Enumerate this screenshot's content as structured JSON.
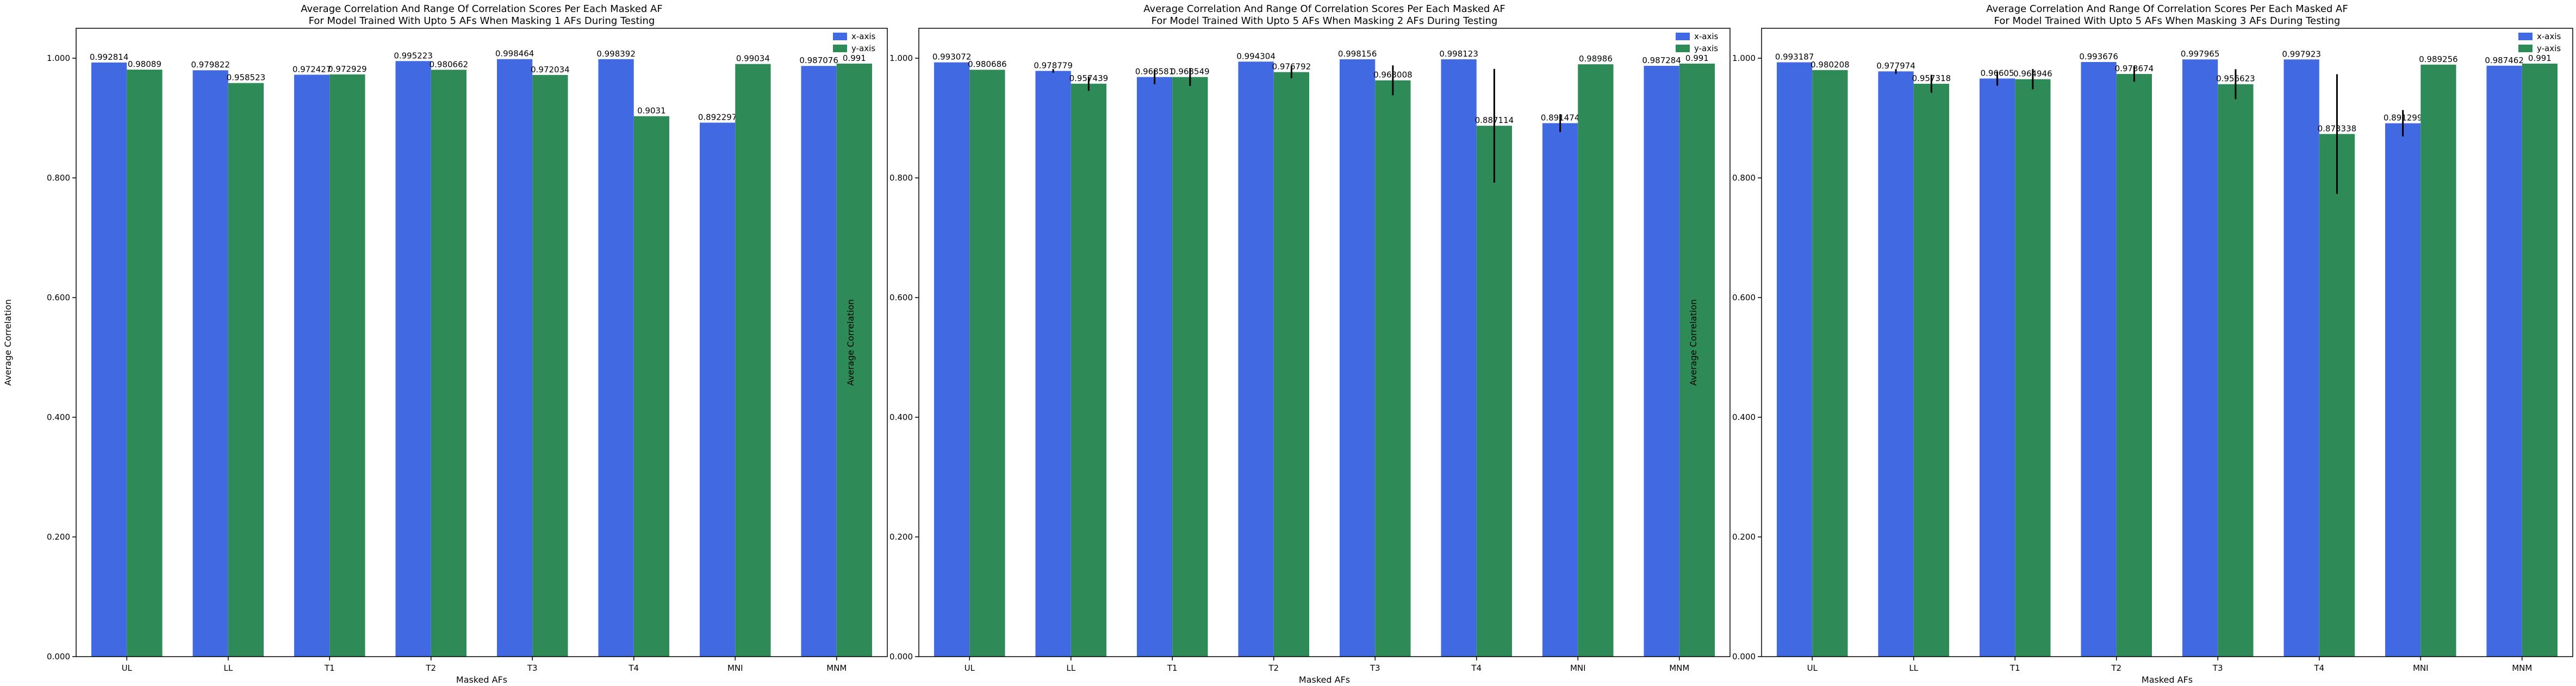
{
  "colors": {
    "x_axis": "#4169e1",
    "y_axis": "#2e8b57",
    "error": "#000000"
  },
  "chart_data": [
    {
      "type": "bar",
      "title": "Average Correlation And Range Of Correlation Scores Per Each Masked AF",
      "subtitle": "For Model Trained With Upto 5 AFs When Masking 1 AFs During Testing",
      "xlabel": "Masked AFs",
      "ylabel": "Average Correlation",
      "ylim": [
        0,
        1.05
      ],
      "yticks": [
        "0.000",
        "0.200",
        "0.400",
        "0.600",
        "0.800",
        "1.000"
      ],
      "legend_position": "top-right",
      "categories": [
        "UL",
        "LL",
        "T1",
        "T2",
        "T3",
        "T4",
        "MNI",
        "MNM"
      ],
      "series": [
        {
          "name": "x-axis",
          "values": [
            0.992814,
            0.979822,
            0.972427,
            0.995223,
            0.998464,
            0.998392,
            0.892297,
            0.987076
          ],
          "labels": [
            "0.992814",
            "0.979822",
            "0.972427",
            "0.995223",
            "0.998464",
            "0.998392",
            "0.892297",
            "0.987076"
          ],
          "err": [
            0,
            0,
            0,
            0,
            0,
            0,
            0,
            0
          ]
        },
        {
          "name": "y-axis",
          "values": [
            0.98089,
            0.958523,
            0.972929,
            0.980662,
            0.972034,
            0.9031,
            0.99034,
            0.991
          ],
          "labels": [
            "0.98089",
            "0.958523",
            "0.972929",
            "0.980662",
            "0.972034",
            "0.9031",
            "0.99034",
            "0.991"
          ],
          "err": [
            0,
            0,
            0,
            0,
            0,
            0,
            0,
            0
          ]
        }
      ]
    },
    {
      "type": "bar",
      "title": "Average Correlation And Range Of Correlation Scores Per Each Masked AF",
      "subtitle": "For Model Trained With Upto 5 AFs When Masking 2 AFs During Testing",
      "xlabel": "Masked AFs",
      "ylabel": "Average Correlation",
      "ylim": [
        0,
        1.05
      ],
      "yticks": [
        "0.000",
        "0.200",
        "0.400",
        "0.600",
        "0.800",
        "1.000"
      ],
      "legend_position": "top-right",
      "categories": [
        "UL",
        "LL",
        "T1",
        "T2",
        "T3",
        "T4",
        "MNI",
        "MNM"
      ],
      "series": [
        {
          "name": "x-axis",
          "values": [
            0.993072,
            0.978779,
            0.968581,
            0.994304,
            0.998156,
            0.998123,
            0.891474,
            0.987284
          ],
          "labels": [
            "0.993072",
            "0.978779",
            "0.968581",
            "0.994304",
            "0.998156",
            "0.998123",
            "0.891474",
            "0.987284"
          ],
          "err": [
            0,
            0.003,
            0.012,
            0,
            0,
            0,
            0.015,
            0
          ]
        },
        {
          "name": "y-axis",
          "values": [
            0.980686,
            0.957439,
            0.968549,
            0.976792,
            0.963008,
            0.887114,
            0.98986,
            0.991
          ],
          "labels": [
            "0.980686",
            "0.957439",
            "0.968549",
            "0.976792",
            "0.963008",
            "0.887114",
            "0.98986",
            "0.991"
          ],
          "err": [
            0,
            0.012,
            0.015,
            0.01,
            0.025,
            0.095,
            0,
            0
          ]
        }
      ]
    },
    {
      "type": "bar",
      "title": "Average Correlation And Range Of Correlation Scores Per Each Masked AF",
      "subtitle": "For Model Trained With Upto 5 AFs When Masking 3 AFs During Testing",
      "xlabel": "Masked AFs",
      "ylabel": "Average Correlation",
      "ylim": [
        0,
        1.05
      ],
      "yticks": [
        "0.000",
        "0.200",
        "0.400",
        "0.600",
        "0.800",
        "1.000"
      ],
      "legend_position": "top-right",
      "categories": [
        "UL",
        "LL",
        "T1",
        "T2",
        "T3",
        "T4",
        "MNI",
        "MNM"
      ],
      "series": [
        {
          "name": "x-axis",
          "values": [
            0.993187,
            0.977974,
            0.96605,
            0.993676,
            0.997965,
            0.997923,
            0.891299,
            0.987462
          ],
          "labels": [
            "0.993187",
            "0.977974",
            "0.96605",
            "0.993676",
            "0.997965",
            "0.997923",
            "0.891299",
            "0.987462"
          ],
          "err": [
            0,
            0.004,
            0.012,
            0,
            0,
            0,
            0.022,
            0
          ]
        },
        {
          "name": "y-axis",
          "values": [
            0.980208,
            0.957318,
            0.964946,
            0.973674,
            0.956623,
            0.873338,
            0.989256,
            0.991
          ],
          "labels": [
            "0.980208",
            "0.957318",
            "0.964946",
            "0.973674",
            "0.956623",
            "0.873338",
            "0.989256",
            "0.991"
          ],
          "err": [
            0,
            0.015,
            0.017,
            0.013,
            0.025,
            0.1,
            0,
            0
          ]
        }
      ]
    }
  ]
}
